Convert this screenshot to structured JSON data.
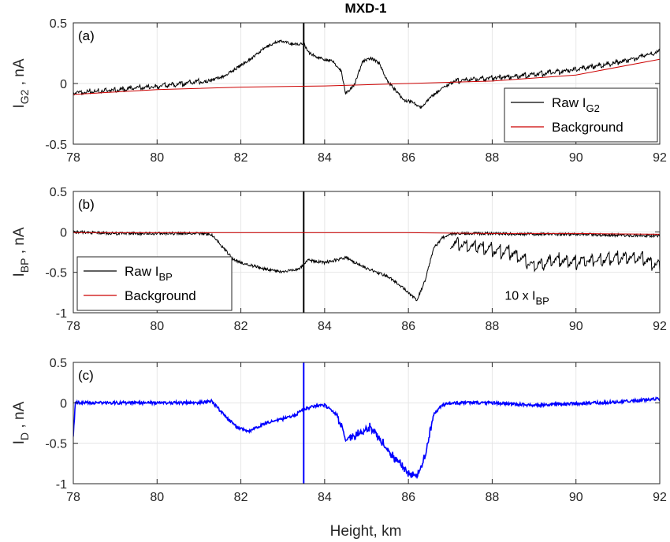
{
  "figure_title": "MXD-1",
  "xlabel": "Height, km",
  "colors": {
    "raw": "#000000",
    "background": "#cc0000",
    "difference": "#0000ff",
    "grid": "#e6e6e6",
    "axis": "#262626"
  },
  "chart_data": [
    {
      "type": "line",
      "panel_label": "(a)",
      "ylabel_main": "I",
      "ylabel_sub": "G2",
      "ylabel_unit": " , nA",
      "xlim": [
        78,
        92
      ],
      "ylim": [
        -0.5,
        0.5
      ],
      "xticks": [
        78,
        80,
        82,
        84,
        86,
        88,
        90,
        92
      ],
      "yticks": [
        -0.5,
        0,
        0.5
      ],
      "ytick_labels": [
        "-0.5",
        "0",
        "0.5"
      ],
      "grid": true,
      "legend_position": "bottom-right",
      "series": [
        {
          "name": "Raw I",
          "name_sub": "G2",
          "color": "#000000",
          "x": [
            78,
            78.5,
            79,
            79.5,
            80,
            80.5,
            81,
            81.3,
            81.6,
            82,
            82.3,
            82.6,
            82.9,
            83.2,
            83.4,
            83.5,
            83.6,
            83.8,
            84.0,
            84.2,
            84.4,
            84.5,
            84.7,
            84.9,
            85.1,
            85.3,
            85.5,
            85.7,
            85.9,
            86.1,
            86.3,
            86.5,
            86.8,
            87.0,
            87.5,
            88,
            88.5,
            89,
            89.5,
            90,
            90.5,
            91,
            91.5,
            92
          ],
          "y": [
            -0.09,
            -0.08,
            -0.07,
            -0.05,
            -0.04,
            -0.02,
            0.0,
            0.03,
            0.06,
            0.15,
            0.22,
            0.3,
            0.35,
            0.33,
            0.32,
            0.34,
            0.26,
            0.22,
            0.2,
            0.18,
            0.1,
            -0.08,
            -0.02,
            0.18,
            0.21,
            0.17,
            0.02,
            -0.06,
            -0.14,
            -0.15,
            -0.2,
            -0.12,
            -0.04,
            0.0,
            0.02,
            0.03,
            0.04,
            0.06,
            0.08,
            0.1,
            0.13,
            0.16,
            0.2,
            0.25
          ],
          "spikes": [
            {
              "x": 83.5,
              "y0": -0.5,
              "y1": 0.5
            }
          ]
        },
        {
          "name": "Background",
          "color": "#cc0000",
          "x": [
            78,
            80,
            82,
            84,
            86,
            88,
            90,
            92
          ],
          "y": [
            -0.09,
            -0.05,
            -0.03,
            -0.02,
            0.0,
            0.02,
            0.07,
            0.2
          ]
        }
      ],
      "annotations": []
    },
    {
      "type": "line",
      "panel_label": "(b)",
      "ylabel_main": "I",
      "ylabel_sub": "BP",
      "ylabel_unit": " , nA",
      "xlim": [
        78,
        92
      ],
      "ylim": [
        -1,
        0.5
      ],
      "xticks": [
        78,
        80,
        82,
        84,
        86,
        88,
        90,
        92
      ],
      "yticks": [
        -1,
        -0.5,
        0,
        0.5
      ],
      "ytick_labels": [
        "-1",
        "-0.5",
        "0",
        "0.5"
      ],
      "grid": true,
      "legend_position": "bottom-left",
      "series": [
        {
          "name": "Raw I",
          "name_sub": "BP",
          "color": "#000000",
          "x": [
            78,
            79,
            80,
            81,
            81.3,
            81.5,
            81.8,
            82,
            82.5,
            83,
            83.4,
            83.6,
            84,
            84.5,
            85,
            85.5,
            85.9,
            86.2,
            86.4,
            86.6,
            86.8,
            87.0,
            88,
            89,
            90,
            91,
            92
          ],
          "y": [
            0.0,
            -0.02,
            -0.02,
            -0.02,
            -0.03,
            -0.15,
            -0.33,
            -0.38,
            -0.45,
            -0.5,
            -0.45,
            -0.35,
            -0.38,
            -0.32,
            -0.45,
            -0.55,
            -0.7,
            -0.85,
            -0.6,
            -0.2,
            -0.08,
            -0.02,
            -0.02,
            -0.03,
            -0.03,
            -0.04,
            -0.05
          ],
          "spikes": [
            {
              "x": 83.5,
              "y0": -1,
              "y1": 0.5
            }
          ]
        },
        {
          "name": "10 x I",
          "name_sub": "BP",
          "color": "#000000",
          "x": [
            87.0,
            87.5,
            88,
            88.5,
            89,
            89.5,
            90,
            90.5,
            91,
            91.5,
            92
          ],
          "y": [
            -0.17,
            -0.2,
            -0.25,
            -0.3,
            -0.45,
            -0.38,
            -0.4,
            -0.38,
            -0.35,
            -0.35,
            -0.45
          ]
        },
        {
          "name": "Background",
          "color": "#cc0000",
          "x": [
            78,
            80,
            82,
            84,
            86,
            88,
            90,
            92
          ],
          "y": [
            -0.01,
            -0.01,
            -0.01,
            -0.01,
            -0.01,
            -0.02,
            -0.02,
            -0.03
          ]
        }
      ],
      "annotations": [
        {
          "text_main": "10 x I",
          "text_sub": "BP",
          "x": 88.3,
          "y": -0.78
        }
      ]
    },
    {
      "type": "line",
      "panel_label": "(c)",
      "ylabel_main": "I",
      "ylabel_sub": "D",
      "ylabel_unit": " , nA",
      "xlim": [
        78,
        92
      ],
      "ylim": [
        -1,
        0.5
      ],
      "xticks": [
        78,
        80,
        82,
        84,
        86,
        88,
        90,
        92
      ],
      "yticks": [
        -1,
        -0.5,
        0,
        0.5
      ],
      "ytick_labels": [
        "-1",
        "-0.5",
        "0",
        "0.5"
      ],
      "grid": true,
      "legend_position": "none",
      "series": [
        {
          "name": "",
          "color": "#0000ff",
          "x": [
            78,
            78.05,
            78.5,
            79,
            80,
            81,
            81.3,
            81.6,
            81.9,
            82.2,
            82.6,
            83.0,
            83.3,
            83.5,
            83.7,
            84.0,
            84.3,
            84.5,
            84.8,
            85.1,
            85.4,
            85.7,
            86.0,
            86.2,
            86.4,
            86.6,
            86.8,
            87.0,
            88,
            89,
            90,
            91,
            92
          ],
          "y": [
            -0.4,
            0.0,
            0.0,
            0.0,
            0.0,
            0.0,
            0.02,
            -0.15,
            -0.3,
            -0.35,
            -0.25,
            -0.2,
            -0.15,
            -0.08,
            -0.05,
            -0.03,
            -0.15,
            -0.45,
            -0.38,
            -0.3,
            -0.5,
            -0.7,
            -0.88,
            -0.9,
            -0.65,
            -0.15,
            -0.03,
            0.0,
            0.0,
            -0.03,
            -0.01,
            0.01,
            0.05
          ],
          "spikes": [
            {
              "x": 83.5,
              "y0": -1,
              "y1": 0.5
            }
          ]
        }
      ],
      "annotations": []
    }
  ]
}
